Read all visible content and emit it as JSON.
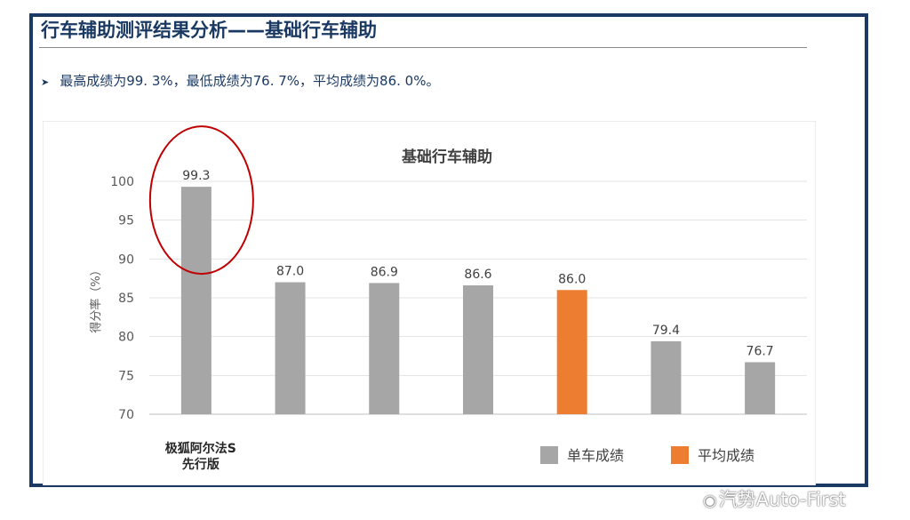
{
  "slide": {
    "title": "行车辅助测评结果分析——基础行车辅助",
    "summary": "最高成绩为99. 3%，最低成绩为76. 7%，平均成绩为86. 0%。"
  },
  "colors": {
    "single": "#a6a6a6",
    "average": "#ed7d31",
    "frame": "#1b3a63",
    "highlight": "#c00000"
  },
  "chart_data": {
    "type": "bar",
    "title": "基础行车辅助",
    "ylabel": "得分率（%）",
    "ylim": [
      70,
      100
    ],
    "yticks": [
      "70",
      "75",
      "80",
      "85",
      "90",
      "95",
      "100"
    ],
    "categories": [
      "极狐阿尔法S先行版",
      "",
      "",
      "",
      "",
      "",
      ""
    ],
    "first_label_lines": [
      "极狐阿尔法S",
      "先行版"
    ],
    "values": [
      99.3,
      87.0,
      86.9,
      86.6,
      86.0,
      79.4,
      76.7
    ],
    "value_labels": [
      "99.3",
      "87.0",
      "86.9",
      "86.6",
      "86.0",
      "79.4",
      "76.7"
    ],
    "bar_kinds": [
      "single",
      "single",
      "single",
      "single",
      "average",
      "single",
      "single"
    ],
    "legend": [
      {
        "key": "single",
        "label": "单车成绩"
      },
      {
        "key": "average",
        "label": "平均成绩"
      }
    ],
    "highlighted_index": 0,
    "grid": true,
    "legend_position": "bottom-right"
  },
  "watermark": {
    "icon": "weibo-icon",
    "text": "汽势Auto-First"
  }
}
